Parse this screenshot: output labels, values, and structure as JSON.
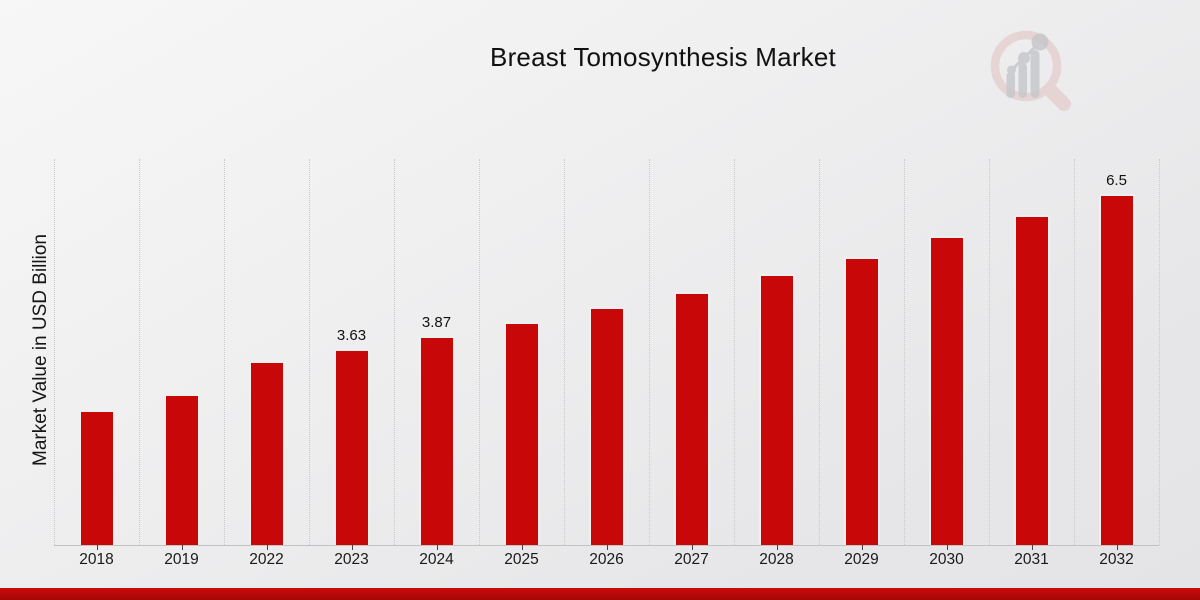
{
  "header": {
    "title": "Breast Tomosynthesis Market"
  },
  "logo": {
    "name": "market-research-magnifier-logo"
  },
  "colors": {
    "bar": "#c80808",
    "bar_edge": "#efefef",
    "footer_strip_top": "#cb0b0b",
    "footer_strip_bottom": "#a30707",
    "background": "#ededee",
    "gridline": "#c9c9c9",
    "axis_line": "#c2c2c2",
    "text": "#111111",
    "logo_pink": "#e2c0c0",
    "logo_gray": "#c7c8cb"
  },
  "chart_data": {
    "type": "bar",
    "title": "Breast Tomosynthesis Market",
    "xlabel": "",
    "ylabel": "Market Value in USD Billion",
    "categories": [
      "2018",
      "2019",
      "2022",
      "2023",
      "2024",
      "2025",
      "2026",
      "2027",
      "2028",
      "2029",
      "2030",
      "2031",
      "2032"
    ],
    "values": [
      2.5,
      2.8,
      3.4,
      3.63,
      3.87,
      4.13,
      4.4,
      4.69,
      5.02,
      5.33,
      5.72,
      6.11,
      6.5
    ],
    "bar_labels": [
      "",
      "",
      "",
      "3.63",
      "3.87",
      "",
      "",
      "",
      "",
      "",
      "",
      "",
      "6.5"
    ],
    "ylim": [
      0,
      7.15
    ],
    "grid": "vertical-dotted-category-separators",
    "legend": "none",
    "bar_color": "#c80808"
  }
}
